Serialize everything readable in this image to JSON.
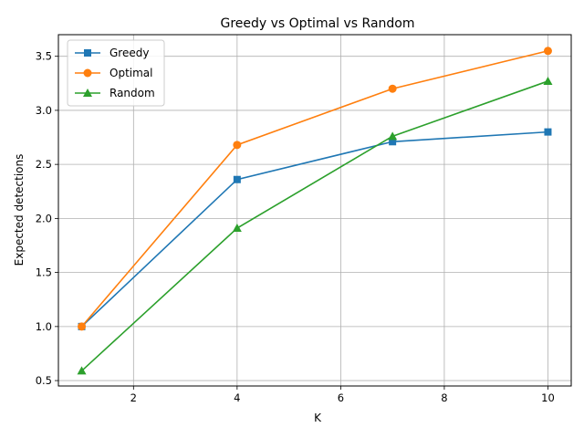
{
  "chart_data": {
    "type": "line",
    "title": "Greedy vs Optimal vs Random",
    "xlabel": "K",
    "ylabel": "Expected detections",
    "xlim": [
      0.55,
      10.45
    ],
    "ylim": [
      0.45,
      3.7
    ],
    "xticks": [
      2,
      4,
      6,
      8,
      10
    ],
    "yticks": [
      0.5,
      1.0,
      1.5,
      2.0,
      2.5,
      3.0,
      3.5
    ],
    "xtick_labels": [
      "2",
      "4",
      "6",
      "8",
      "10"
    ],
    "ytick_labels": [
      "0.5",
      "1.0",
      "1.5",
      "2.0",
      "2.5",
      "3.0",
      "3.5"
    ],
    "grid": true,
    "legend_position": "top-left",
    "x": [
      1,
      4,
      7,
      10
    ],
    "series": [
      {
        "name": "Greedy",
        "values": [
          1.0,
          2.36,
          2.71,
          2.8
        ],
        "color": "#1f77b4",
        "marker": "square"
      },
      {
        "name": "Optimal",
        "values": [
          1.0,
          2.68,
          3.2,
          3.55
        ],
        "color": "#ff7f0e",
        "marker": "circle"
      },
      {
        "name": "Random",
        "values": [
          0.59,
          1.91,
          2.76,
          3.27
        ],
        "color": "#2ca02c",
        "marker": "triangle"
      }
    ]
  }
}
